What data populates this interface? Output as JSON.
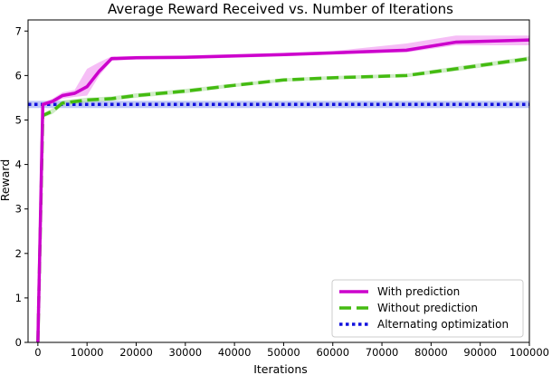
{
  "chart_data": {
    "type": "line",
    "title": "Average Reward Received vs. Number of Iterations",
    "xlabel": "Iterations",
    "ylabel": "Reward",
    "xlim": [
      -2000,
      100000
    ],
    "ylim": [
      0,
      7.25
    ],
    "xticks": [
      0,
      10000,
      20000,
      30000,
      40000,
      50000,
      60000,
      70000,
      80000,
      90000,
      100000
    ],
    "yticks": [
      0,
      1,
      2,
      3,
      4,
      5,
      6,
      7
    ],
    "grid": false,
    "legend_position": "lower-right",
    "series": [
      {
        "name": "With prediction",
        "color": "#cc00cc",
        "band_color": "#ee88ee",
        "style": "solid",
        "x": [
          0,
          1000,
          3000,
          5000,
          7500,
          10000,
          12500,
          15000,
          20000,
          30000,
          40000,
          50000,
          60000,
          75000,
          85000,
          100000
        ],
        "y": [
          0,
          5.35,
          5.42,
          5.55,
          5.6,
          5.75,
          6.1,
          6.38,
          6.4,
          6.41,
          6.44,
          6.47,
          6.51,
          6.57,
          6.75,
          6.8
        ],
        "band_lower": [
          0,
          5.3,
          5.36,
          5.48,
          5.52,
          5.55,
          6.0,
          6.33,
          6.36,
          6.37,
          6.4,
          6.43,
          6.47,
          6.52,
          6.68,
          6.68
        ],
        "band_upper": [
          0,
          5.4,
          5.48,
          5.62,
          5.68,
          6.15,
          6.3,
          6.43,
          6.44,
          6.45,
          6.48,
          6.51,
          6.55,
          6.72,
          6.9,
          6.9
        ]
      },
      {
        "name": "Without prediction",
        "color": "#44bb11",
        "band_color": "#aadd99",
        "style": "dashed",
        "x": [
          0,
          1000,
          3000,
          5000,
          10000,
          15000,
          20000,
          30000,
          40000,
          50000,
          60000,
          75000,
          85000,
          100000
        ],
        "y": [
          0,
          5.1,
          5.2,
          5.38,
          5.45,
          5.48,
          5.55,
          5.65,
          5.78,
          5.9,
          5.95,
          6.0,
          6.15,
          6.38
        ],
        "band_lower": [
          0,
          5.05,
          5.14,
          5.32,
          5.4,
          5.43,
          5.5,
          5.6,
          5.74,
          5.86,
          5.91,
          5.96,
          6.1,
          6.33
        ],
        "band_upper": [
          0,
          5.15,
          5.26,
          5.44,
          5.5,
          5.53,
          5.6,
          5.7,
          5.82,
          5.94,
          5.99,
          6.04,
          6.2,
          6.43
        ]
      },
      {
        "name": "Alternating optimization",
        "color": "#1111dd",
        "band_color": "#8899ee",
        "style": "dotted",
        "x": [
          -2000,
          100000
        ],
        "y": [
          5.35,
          5.35
        ],
        "band_lower": [
          5.27,
          5.27
        ],
        "band_upper": [
          5.43,
          5.43
        ]
      }
    ]
  }
}
